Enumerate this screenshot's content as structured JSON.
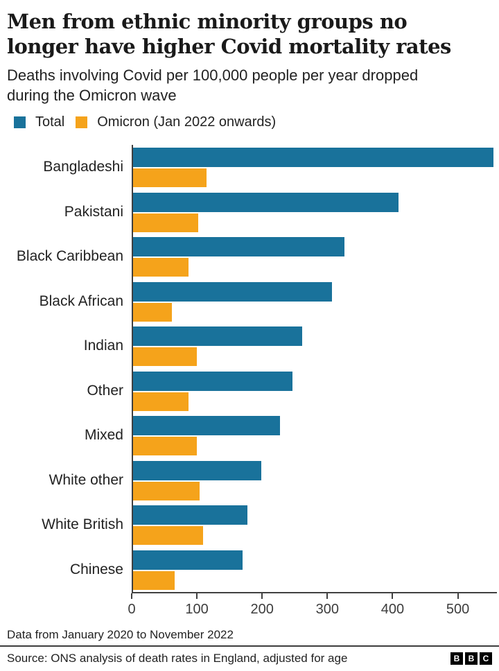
{
  "header": {
    "title": "Men from ethnic minority groups no longer have higher Covid mortality rates",
    "subtitle": "Deaths involving Covid per 100,000 people per year dropped during the Omicron wave"
  },
  "legend": [
    {
      "label": "Total",
      "color": "#19729B"
    },
    {
      "label": "Omicron (Jan 2022 onwards)",
      "color": "#F5A31B"
    }
  ],
  "chart_data": {
    "type": "bar",
    "orientation": "horizontal",
    "title": "Men from ethnic minority groups no longer have higher Covid mortality rates",
    "subtitle": "Deaths involving Covid per 100,000 people per year dropped during the Omicron wave",
    "categories": [
      "Bangladeshi",
      "Pakistani",
      "Black Caribbean",
      "Black African",
      "Indian",
      "Other",
      "Mixed",
      "White other",
      "White British",
      "Chinese"
    ],
    "series": [
      {
        "name": "Total",
        "color": "#19729B",
        "values": [
          555,
          408,
          325,
          306,
          260,
          245,
          226,
          197,
          176,
          169
        ]
      },
      {
        "name": "Omicron (Jan 2022 onwards)",
        "color": "#F5A31B",
        "values": [
          113,
          100,
          85,
          60,
          98,
          85,
          98,
          102,
          108,
          64
        ]
      }
    ],
    "xlabel": "",
    "ylabel": "",
    "xlim": [
      0,
      560
    ],
    "xticks": [
      0,
      100,
      200,
      300,
      400,
      500
    ],
    "grid": false,
    "legend_position": "top"
  },
  "footer": {
    "note": "Data from January 2020 to November 2022",
    "source": "Source: ONS analysis of death rates in England, adjusted for age",
    "logo_letters": [
      "B",
      "B",
      "C"
    ]
  }
}
